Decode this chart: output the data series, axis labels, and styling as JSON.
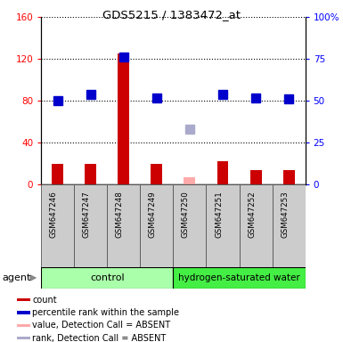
{
  "title": "GDS5215 / 1383472_at",
  "samples": [
    "GSM647246",
    "GSM647247",
    "GSM647248",
    "GSM647249",
    "GSM647250",
    "GSM647251",
    "GSM647252",
    "GSM647253"
  ],
  "bar_values": [
    20,
    20,
    125,
    20,
    null,
    22,
    14,
    14
  ],
  "bar_absent_values": [
    null,
    null,
    null,
    null,
    7,
    null,
    null,
    null
  ],
  "rank_values": [
    50,
    54,
    76,
    52,
    null,
    54,
    52,
    51
  ],
  "rank_absent_values": [
    null,
    null,
    null,
    null,
    33,
    null,
    null,
    null
  ],
  "bar_color": "#cc0000",
  "bar_absent_color": "#ffaaaa",
  "rank_color": "#0000cc",
  "rank_absent_color": "#aaaacc",
  "left_ylim": [
    0,
    160
  ],
  "right_ylim": [
    0,
    100
  ],
  "left_yticks": [
    0,
    40,
    80,
    120,
    160
  ],
  "left_yticklabels": [
    "0",
    "40",
    "80",
    "120",
    "160"
  ],
  "right_yticks": [
    0,
    25,
    50,
    75,
    100
  ],
  "right_yticklabels": [
    "0",
    "25",
    "50",
    "75",
    "100%"
  ],
  "control_label": "control",
  "treatment_label": "hydrogen-saturated water",
  "control_bg": "#aaffaa",
  "treatment_bg": "#44ee44",
  "bar_width": 0.35,
  "rank_marker_size": 7,
  "legend_items": [
    {
      "label": "count",
      "color": "#cc0000"
    },
    {
      "label": "percentile rank within the sample",
      "color": "#0000cc"
    },
    {
      "label": "value, Detection Call = ABSENT",
      "color": "#ffaaaa"
    },
    {
      "label": "rank, Detection Call = ABSENT",
      "color": "#aaaacc"
    }
  ]
}
